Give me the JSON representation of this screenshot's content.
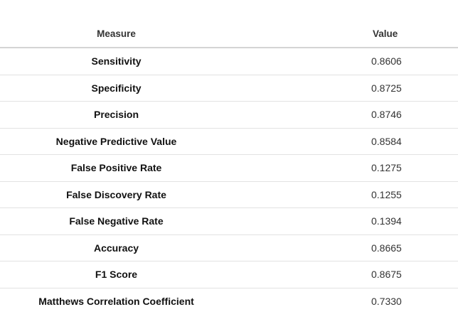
{
  "table": {
    "headers": {
      "measure": "Measure",
      "value": "Value"
    },
    "rows": [
      {
        "measure": "Sensitivity",
        "value": "0.8606"
      },
      {
        "measure": "Specificity",
        "value": "0.8725"
      },
      {
        "measure": "Precision",
        "value": "0.8746"
      },
      {
        "measure": "Negative Predictive Value",
        "value": "0.8584"
      },
      {
        "measure": "False Positive Rate",
        "value": "0.1275"
      },
      {
        "measure": "False Discovery Rate",
        "value": "0.1255"
      },
      {
        "measure": "False Negative Rate",
        "value": "0.1394"
      },
      {
        "measure": "Accuracy",
        "value": "0.8665"
      },
      {
        "measure": "F1 Score",
        "value": "0.8675"
      },
      {
        "measure": "Matthews Correlation Coefficient",
        "value": "0.7330"
      }
    ]
  }
}
